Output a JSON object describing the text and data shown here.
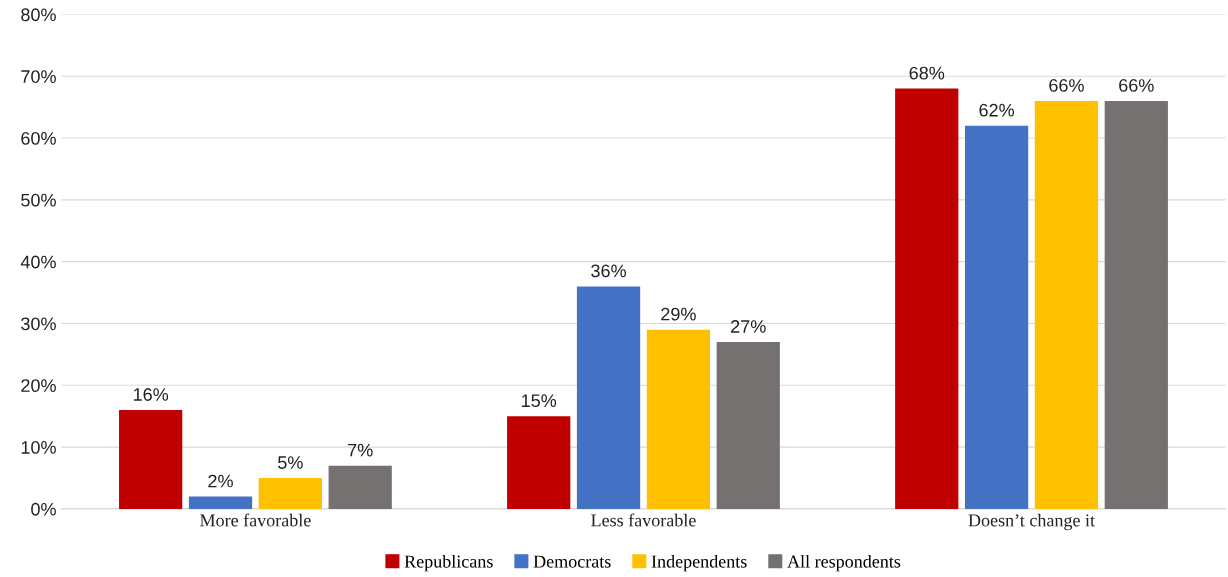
{
  "chart_data": {
    "type": "bar",
    "categories": [
      "More favorable",
      "Less favorable",
      "Doesn’t change it"
    ],
    "series": [
      {
        "name": "Republicans",
        "color": "#c00000",
        "values": [
          16,
          15,
          68
        ],
        "value_labels": [
          "16%",
          "15%",
          "68%"
        ]
      },
      {
        "name": "Democrats",
        "color": "#4472c4",
        "values": [
          2,
          36,
          62
        ],
        "value_labels": [
          "2%",
          "36%",
          "62%"
        ]
      },
      {
        "name": "Independents",
        "color": "#ffc000",
        "values": [
          5,
          29,
          66
        ],
        "value_labels": [
          "5%",
          "29%",
          "66%"
        ]
      },
      {
        "name": "All respondents",
        "color": "#767171",
        "values": [
          7,
          27,
          66
        ],
        "value_labels": [
          "7%",
          "27%",
          "66%"
        ]
      }
    ],
    "ylim": [
      0,
      80
    ],
    "yticks": [
      {
        "value": 0,
        "label": "0%"
      },
      {
        "value": 10,
        "label": "10%"
      },
      {
        "value": 20,
        "label": "20%"
      },
      {
        "value": 30,
        "label": "30%"
      },
      {
        "value": 40,
        "label": "40%"
      },
      {
        "value": 50,
        "label": "50%"
      },
      {
        "value": 60,
        "label": "60%"
      },
      {
        "value": 70,
        "label": "70%"
      },
      {
        "value": 80,
        "label": "80%"
      }
    ],
    "grid": "y",
    "legend": "bottom"
  }
}
